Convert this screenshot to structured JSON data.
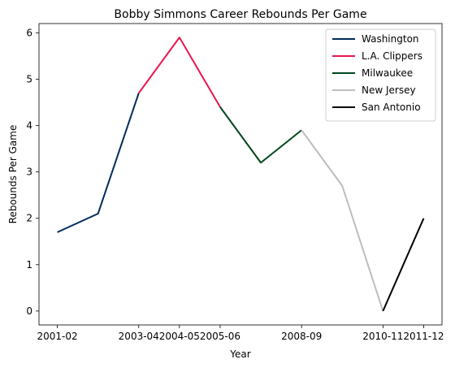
{
  "chart_data": {
    "type": "line",
    "title": "Bobby Simmons Career Rebounds Per Game",
    "xlabel": "Year",
    "ylabel": "Rebounds Per Game",
    "x_tick_labels": [
      "2001-02",
      "2003-04",
      "2004-05",
      "2005-06",
      "2008-09",
      "2010-11",
      "2011-12"
    ],
    "x_tick_positions": [
      0,
      2,
      3,
      4,
      6,
      8,
      9
    ],
    "y_ticks": [
      0,
      1,
      2,
      3,
      4,
      5,
      6
    ],
    "ylim": [
      -0.3,
      6.2
    ],
    "xlim": [
      -0.45,
      9.45
    ],
    "legend_position": "top-right",
    "grid": false,
    "series": [
      {
        "name": "Washington",
        "color": "#002B5C",
        "x": [
          0,
          1,
          2
        ],
        "y": [
          1.7,
          2.1,
          4.7
        ]
      },
      {
        "name": "L.A. Clippers",
        "color": "#E8174F",
        "x": [
          2,
          3,
          4
        ],
        "y": [
          4.7,
          5.9,
          4.4
        ]
      },
      {
        "name": "Milwaukee",
        "color": "#00471B",
        "x": [
          4,
          5,
          6
        ],
        "y": [
          4.4,
          3.2,
          3.9
        ]
      },
      {
        "name": "New Jersey",
        "color": "#BDBDBD",
        "x": [
          6,
          7,
          8
        ],
        "y": [
          3.9,
          2.7,
          0.0
        ]
      },
      {
        "name": "San Antonio",
        "color": "#000000",
        "x": [
          8,
          9
        ],
        "y": [
          0.0,
          2.0
        ]
      }
    ]
  }
}
